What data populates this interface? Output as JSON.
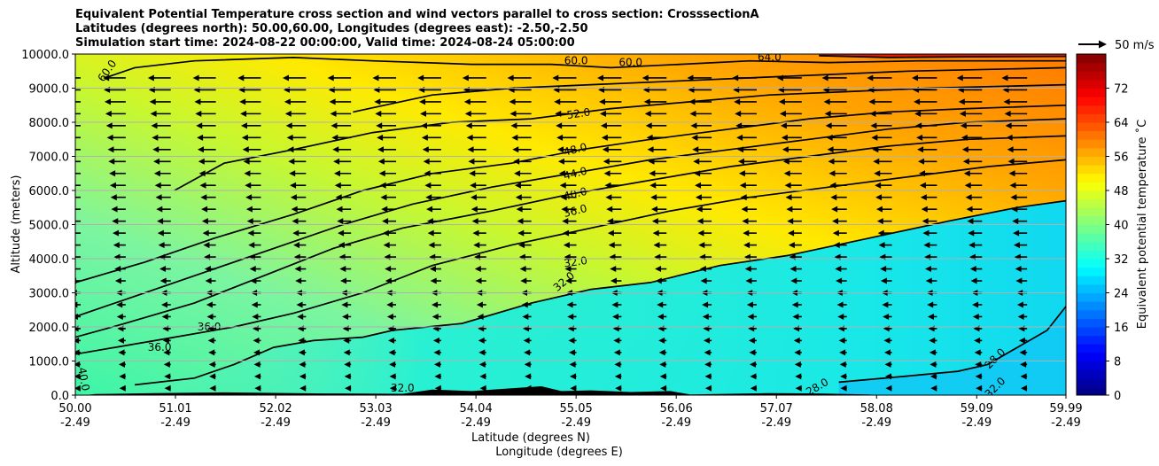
{
  "chart_data": {
    "type": "contour",
    "title_lines": [
      "Equivalent Potential Temperature cross section and wind vectors parallel to cross section: CrosssectionA",
      "Latitudes (degrees north): 50.00,60.00, Longitudes (degrees east): -2.50,-2.50",
      "Simulation start time: 2024-08-22 00:00:00, Valid time: 2024-08-24 05:00:00"
    ],
    "xlabel": "Latitude (degrees N)",
    "xlabel2": "Longitude (degrees E)",
    "ylabel": "Altitude (meters)",
    "xlim": [
      50.0,
      59.99
    ],
    "ylim": [
      0,
      10000
    ],
    "x_ticks": [
      {
        "lat": "50.00",
        "lon": "-2.49",
        "v": 50.0
      },
      {
        "lat": "51.01",
        "lon": "-2.49",
        "v": 51.01
      },
      {
        "lat": "52.02",
        "lon": "-2.49",
        "v": 52.02
      },
      {
        "lat": "53.03",
        "lon": "-2.49",
        "v": 53.03
      },
      {
        "lat": "54.04",
        "lon": "-2.49",
        "v": 54.04
      },
      {
        "lat": "55.05",
        "lon": "-2.49",
        "v": 55.05
      },
      {
        "lat": "56.06",
        "lon": "-2.49",
        "v": 56.06
      },
      {
        "lat": "57.07",
        "lon": "-2.49",
        "v": 57.07
      },
      {
        "lat": "58.08",
        "lon": "-2.49",
        "v": 58.08
      },
      {
        "lat": "59.09",
        "lon": "-2.49",
        "v": 59.09
      },
      {
        "lat": "59.99",
        "lon": "-2.49",
        "v": 59.99
      }
    ],
    "y_ticks": [
      {
        "label": "0.0",
        "v": 0
      },
      {
        "label": "1000.0",
        "v": 1000
      },
      {
        "label": "2000.0",
        "v": 2000
      },
      {
        "label": "3000.0",
        "v": 3000
      },
      {
        "label": "4000.0",
        "v": 4000
      },
      {
        "label": "5000.0",
        "v": 5000
      },
      {
        "label": "6000.0",
        "v": 6000
      },
      {
        "label": "7000.0",
        "v": 7000
      },
      {
        "label": "8000.0",
        "v": 8000
      },
      {
        "label": "9000.0",
        "v": 9000
      },
      {
        "label": "10000.0",
        "v": 10000
      }
    ],
    "colorbar": {
      "label": "Equivalent potential temperature ˚C",
      "min": 0,
      "max": 80,
      "ticks": [
        "0",
        "8",
        "16",
        "24",
        "32",
        "40",
        "48",
        "56",
        "64",
        "72"
      ],
      "tick_values": [
        0,
        8,
        16,
        24,
        32,
        40,
        48,
        56,
        64,
        72
      ]
    },
    "quiver_key": "50 m/s",
    "contour_levels": [
      {
        "level": 28,
        "label": "28.0",
        "points": [
          [
            57.7,
            380
          ],
          [
            58.4,
            560
          ],
          [
            58.9,
            700
          ],
          [
            59.2,
            900
          ],
          [
            59.5,
            1400
          ],
          [
            59.8,
            1900
          ],
          [
            59.99,
            2600
          ]
        ]
      },
      {
        "level": 32,
        "label": "32.0",
        "points": [
          [
            50.6,
            300
          ],
          [
            51.2,
            500
          ],
          [
            51.6,
            900
          ],
          [
            52.0,
            1400
          ],
          [
            52.4,
            1600
          ],
          [
            52.9,
            1700
          ],
          [
            53.2,
            1900
          ],
          [
            53.9,
            2100
          ],
          [
            54.6,
            2700
          ],
          [
            55.2,
            3100
          ],
          [
            55.8,
            3300
          ],
          [
            56.5,
            3800
          ],
          [
            57.2,
            4100
          ],
          [
            58.0,
            4600
          ],
          [
            58.8,
            5100
          ],
          [
            59.5,
            5500
          ],
          [
            59.99,
            5700
          ]
        ]
      },
      {
        "level": 36,
        "label": "36.0",
        "points": [
          [
            50.0,
            1200
          ],
          [
            50.4,
            1400
          ],
          [
            51.0,
            1700
          ],
          [
            51.6,
            2000
          ],
          [
            52.2,
            2400
          ],
          [
            52.9,
            3000
          ],
          [
            53.6,
            3800
          ],
          [
            54.4,
            4400
          ],
          [
            55.2,
            4900
          ],
          [
            56.0,
            5400
          ],
          [
            56.8,
            5800
          ],
          [
            57.6,
            6100
          ],
          [
            58.4,
            6400
          ],
          [
            59.2,
            6700
          ],
          [
            59.99,
            6900
          ]
        ]
      },
      {
        "level": 40,
        "label": "40.0",
        "points": [
          [
            50.0,
            1700
          ],
          [
            50.5,
            2100
          ],
          [
            51.2,
            2700
          ],
          [
            51.9,
            3500
          ],
          [
            52.6,
            4300
          ],
          [
            53.3,
            4900
          ],
          [
            54.2,
            5400
          ],
          [
            55.0,
            5900
          ],
          [
            55.8,
            6300
          ],
          [
            56.6,
            6700
          ],
          [
            57.4,
            7000
          ],
          [
            58.2,
            7300
          ],
          [
            59.0,
            7500
          ],
          [
            59.99,
            7600
          ]
        ]
      },
      {
        "level": 44,
        "label": "44.0",
        "points": [
          [
            50.0,
            2300
          ],
          [
            50.6,
            2900
          ],
          [
            51.3,
            3600
          ],
          [
            52.0,
            4300
          ],
          [
            52.7,
            5000
          ],
          [
            53.4,
            5600
          ],
          [
            54.2,
            6100
          ],
          [
            55.0,
            6500
          ],
          [
            55.8,
            6900
          ],
          [
            56.6,
            7200
          ],
          [
            57.4,
            7500
          ],
          [
            58.2,
            7800
          ],
          [
            59.0,
            8000
          ],
          [
            59.99,
            8100
          ]
        ]
      },
      {
        "level": 48,
        "label": "48.0",
        "points": [
          [
            50.0,
            3300
          ],
          [
            50.7,
            3900
          ],
          [
            51.4,
            4600
          ],
          [
            52.2,
            5300
          ],
          [
            52.9,
            6000
          ],
          [
            53.6,
            6500
          ],
          [
            54.4,
            6800
          ],
          [
            55.1,
            7200
          ],
          [
            55.8,
            7500
          ],
          [
            56.6,
            7800
          ],
          [
            57.4,
            8100
          ],
          [
            58.2,
            8300
          ],
          [
            59.0,
            8400
          ],
          [
            59.99,
            8500
          ]
        ]
      },
      {
        "level": 52,
        "label": "52.0",
        "points": [
          [
            51.0,
            6000
          ],
          [
            51.5,
            6800
          ],
          [
            52.2,
            7200
          ],
          [
            53.0,
            7700
          ],
          [
            53.8,
            8000
          ],
          [
            54.6,
            8100
          ],
          [
            55.4,
            8400
          ],
          [
            56.2,
            8600
          ],
          [
            57.0,
            8800
          ],
          [
            57.8,
            8900
          ],
          [
            58.6,
            9000
          ],
          [
            59.99,
            9100
          ]
        ]
      },
      {
        "level": 56,
        "label": "56.0",
        "points": [
          [
            52.8,
            8300
          ],
          [
            53.6,
            8800
          ],
          [
            54.4,
            9000
          ],
          [
            55.2,
            9100
          ],
          [
            56.0,
            9200
          ],
          [
            56.8,
            9300
          ],
          [
            57.6,
            9400
          ],
          [
            58.4,
            9500
          ],
          [
            59.99,
            9600
          ]
        ]
      },
      {
        "level": 60,
        "label": "60.0",
        "points": [
          [
            50.3,
            9300
          ],
          [
            50.6,
            9600
          ],
          [
            51.2,
            9800
          ],
          [
            52.2,
            9900
          ],
          [
            53.0,
            9800
          ],
          [
            54.0,
            9700
          ],
          [
            54.8,
            9700
          ],
          [
            55.4,
            9600
          ],
          [
            56.1,
            9700
          ],
          [
            56.8,
            9800
          ],
          [
            57.6,
            9750
          ],
          [
            58.5,
            9800
          ],
          [
            59.99,
            9800
          ]
        ]
      },
      {
        "level": 64,
        "label": "64.0",
        "points": [
          [
            57.5,
            9950
          ],
          [
            58.2,
            9900
          ],
          [
            59.0,
            9920
          ],
          [
            59.99,
            9930
          ]
        ]
      }
    ],
    "contour_labels": [
      {
        "text": "60.0",
        "x": 50.35,
        "y": 9450,
        "rot": -55
      },
      {
        "text": "60.0",
        "x": 55.05,
        "y": 9700,
        "rot": 0
      },
      {
        "text": "60.0",
        "x": 55.6,
        "y": 9650,
        "rot": 0
      },
      {
        "text": "64.0",
        "x": 57.0,
        "y": 9800,
        "rot": 0
      },
      {
        "text": "52.0",
        "x": 55.08,
        "y": 8150,
        "rot": -8
      },
      {
        "text": "48.0",
        "x": 55.05,
        "y": 7100,
        "rot": -14
      },
      {
        "text": "44.0",
        "x": 55.05,
        "y": 6400,
        "rot": -14
      },
      {
        "text": "40.0",
        "x": 55.05,
        "y": 5800,
        "rot": -14
      },
      {
        "text": "36.0",
        "x": 55.05,
        "y": 5300,
        "rot": -14
      },
      {
        "text": "32.0",
        "x": 55.05,
        "y": 3800,
        "rot": -8
      },
      {
        "text": "32.0",
        "x": 54.95,
        "y": 3250,
        "rot": -40
      },
      {
        "text": "36.0",
        "x": 51.35,
        "y": 1900,
        "rot": 0
      },
      {
        "text": "36.0",
        "x": 50.85,
        "y": 1300,
        "rot": 0
      },
      {
        "text": "40.0",
        "x": 50.05,
        "y": 450,
        "rot": 80
      },
      {
        "text": "32.0",
        "x": 53.3,
        "y": 100,
        "rot": 0
      },
      {
        "text": "28.0",
        "x": 59.3,
        "y": 1000,
        "rot": -45
      },
      {
        "text": "32.0",
        "x": 59.3,
        "y": 150,
        "rot": -45
      },
      {
        "text": "28.0",
        "x": 57.5,
        "y": 150,
        "rot": -30
      }
    ]
  },
  "colors": {
    "text": "#000000",
    "grid": "#b0b0b0",
    "contour": "#000000",
    "terrain": "#000000"
  }
}
